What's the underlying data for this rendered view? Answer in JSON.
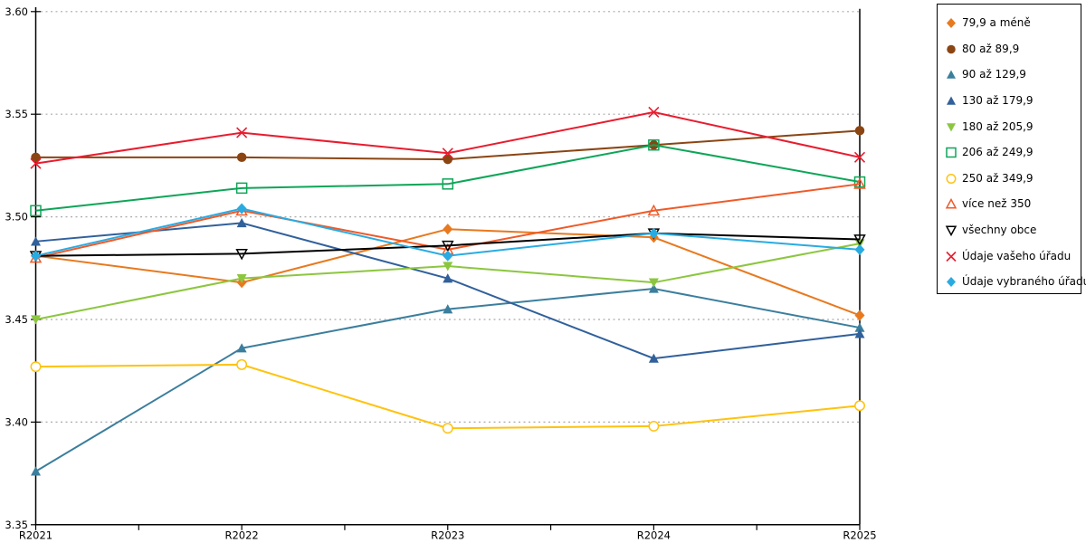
{
  "chart_data": {
    "type": "line",
    "title": "",
    "xlabel": "",
    "ylabel": "",
    "categories": [
      "R2021",
      "R2022",
      "R2023",
      "R2024",
      "R2025"
    ],
    "ylim": [
      3.35,
      3.6
    ],
    "ytick_step": 0.05,
    "yticks": [
      "3.35",
      "3.40",
      "3.45",
      "3.50",
      "3.55",
      "3.60"
    ],
    "grid": "horizontal-dotted",
    "legend_position": "top-right",
    "colors": {
      "gridline": "#ABABAB",
      "axis": "#000000",
      "background": "#FFFFFF"
    },
    "series": [
      {
        "name": "79,9 a méně",
        "color": "#E8791E",
        "marker": "diamond",
        "fill": "filled",
        "values": [
          3.481,
          3.468,
          3.494,
          3.49,
          3.452
        ]
      },
      {
        "name": "80 až 89,9",
        "color": "#8B4513",
        "marker": "circle",
        "fill": "filled",
        "values": [
          3.529,
          3.529,
          3.528,
          3.535,
          3.542
        ]
      },
      {
        "name": "90 až 129,9",
        "color": "#3B7E9D",
        "marker": "triangle-up",
        "fill": "filled",
        "values": [
          3.376,
          3.436,
          3.455,
          3.465,
          3.446
        ]
      },
      {
        "name": "130 až 179,9",
        "color": "#31609B",
        "marker": "triangle-up",
        "fill": "filled",
        "values": [
          3.488,
          3.497,
          3.47,
          3.431,
          3.443
        ]
      },
      {
        "name": "180 až 205,9",
        "color": "#8CC63F",
        "marker": "triangle-down",
        "fill": "filled",
        "values": [
          3.45,
          3.47,
          3.476,
          3.468,
          3.487
        ]
      },
      {
        "name": "206 až 249,9",
        "color": "#0EA558",
        "marker": "square",
        "fill": "open",
        "values": [
          3.503,
          3.514,
          3.516,
          3.535,
          3.517
        ]
      },
      {
        "name": "250 až 349,9",
        "color": "#FFC20E",
        "marker": "circle",
        "fill": "open",
        "values": [
          3.427,
          3.428,
          3.397,
          3.398,
          3.408
        ]
      },
      {
        "name": "více než 350",
        "color": "#F05A28",
        "marker": "triangle-up",
        "fill": "open",
        "values": [
          3.48,
          3.503,
          3.484,
          3.503,
          3.516
        ]
      },
      {
        "name": "všechny obce",
        "color": "#000000",
        "marker": "triangle-down",
        "fill": "open",
        "values": [
          3.481,
          3.482,
          3.486,
          3.492,
          3.489
        ]
      },
      {
        "name": "Údaje vašeho úřadu",
        "color": "#E81C2E",
        "marker": "x",
        "fill": "open",
        "values": [
          3.526,
          3.541,
          3.531,
          3.551,
          3.529
        ]
      },
      {
        "name": "Údaje vybraného úřadu",
        "color": "#29ABE2",
        "marker": "diamond",
        "fill": "filled",
        "values": [
          3.481,
          3.504,
          3.481,
          3.492,
          3.484
        ]
      }
    ]
  }
}
